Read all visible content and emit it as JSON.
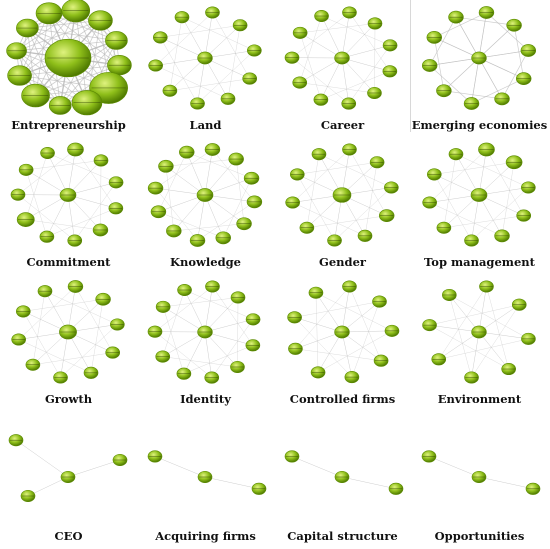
{
  "figure": {
    "node_fill": "#8fbf1a",
    "node_fill_dark": "#5b8a00",
    "node_highlight": "#d9f07a",
    "edge_color": "#b9b9b9",
    "label_color": "#444444",
    "panels": [
      {
        "title": "Entrepreneurship",
        "layout": "ring",
        "center_size": 1.0,
        "sizes": [
          0.55,
          0.45,
          0.4,
          0.45,
          0.8,
          0.6,
          0.4,
          0.55,
          0.45,
          0.35,
          0.4,
          0.5
        ],
        "node_labels": [],
        "edges": "dense"
      },
      {
        "title": "Land",
        "layout": "ring",
        "center_size": 0.22,
        "sizes": [
          0.2,
          0.2,
          0.2,
          0.2,
          0.2,
          0.2,
          0.2,
          0.2,
          0.2,
          0.2
        ],
        "node_labels": [],
        "edges": "sparse"
      },
      {
        "title": "Career",
        "layout": "ring",
        "center_size": 0.22,
        "sizes": [
          0.2,
          0.2,
          0.2,
          0.2,
          0.2,
          0.2,
          0.2,
          0.2,
          0.2,
          0.2,
          0.2
        ],
        "node_labels": [],
        "edges": "sparse"
      },
      {
        "title": "Emerging economies",
        "layout": "ring",
        "center_size": 0.22,
        "sizes": [
          0.22,
          0.22,
          0.22,
          0.22,
          0.22,
          0.22,
          0.22,
          0.22,
          0.22,
          0.22
        ],
        "node_labels": [],
        "edges": "mesh"
      },
      {
        "title": "Commitment",
        "layout": "ring",
        "center_size": 0.25,
        "sizes": [
          0.25,
          0.2,
          0.2,
          0.2,
          0.22,
          0.2,
          0.2,
          0.28,
          0.2,
          0.2,
          0.2
        ],
        "node_labels": [],
        "edges": "sparse"
      },
      {
        "title": "Knowledge",
        "layout": "ring",
        "center_size": 0.25,
        "sizes": [
          0.22,
          0.22,
          0.22,
          0.22,
          0.22,
          0.22,
          0.22,
          0.22,
          0.22,
          0.22,
          0.22,
          0.22
        ],
        "node_labels": [],
        "edges": "sparse"
      },
      {
        "title": "Gender",
        "layout": "ring",
        "center_size": 0.3,
        "sizes": [
          0.2,
          0.2,
          0.2,
          0.22,
          0.2,
          0.2,
          0.2,
          0.2,
          0.2,
          0.2
        ],
        "node_labels": [],
        "edges": "sparse"
      },
      {
        "title": "Top management",
        "layout": "ring",
        "center_size": 0.25,
        "sizes": [
          0.25,
          0.25,
          0.2,
          0.2,
          0.22,
          0.2,
          0.2,
          0.2,
          0.2,
          0.2
        ],
        "node_labels": [],
        "edges": "sparse"
      },
      {
        "title": "Growth",
        "layout": "ring",
        "center_size": 0.28,
        "sizes": [
          0.22,
          0.22,
          0.2,
          0.2,
          0.2,
          0.2,
          0.2,
          0.2,
          0.2,
          0.2
        ],
        "node_labels": [],
        "edges": "sparse"
      },
      {
        "title": "Identity",
        "layout": "ring",
        "center_size": 0.22,
        "sizes": [
          0.2,
          0.2,
          0.2,
          0.2,
          0.2,
          0.2,
          0.2,
          0.2,
          0.2,
          0.2,
          0.2
        ],
        "node_labels": [],
        "edges": "sparse"
      },
      {
        "title": "Controlled firms",
        "layout": "ring",
        "center_size": 0.22,
        "sizes": [
          0.2,
          0.2,
          0.2,
          0.2,
          0.2,
          0.2,
          0.2,
          0.2,
          0.2
        ],
        "node_labels": [],
        "edges": "sparse"
      },
      {
        "title": "Environment",
        "layout": "ring",
        "center_size": 0.22,
        "sizes": [
          0.2,
          0.2,
          0.2,
          0.2,
          0.2,
          0.2,
          0.2,
          0.2
        ],
        "node_labels": [],
        "edges": "sparse"
      },
      {
        "title": "CEO",
        "layout": "fan",
        "center_size": 0.2,
        "sizes": [
          0.2,
          0.2,
          0.2
        ],
        "node_labels": [],
        "edges": "star"
      },
      {
        "title": "Acquiring firms",
        "layout": "fan",
        "center_size": 0.2,
        "sizes": [
          0.2,
          0.2
        ],
        "node_labels": [],
        "edges": "star"
      },
      {
        "title": "Capital structure",
        "layout": "fan",
        "center_size": 0.2,
        "sizes": [
          0.2,
          0.2
        ],
        "node_labels": [],
        "edges": "star"
      },
      {
        "title": "Opportunities",
        "layout": "fan",
        "center_size": 0.2,
        "sizes": [
          0.2,
          0.2
        ],
        "node_labels": [],
        "edges": "star"
      }
    ]
  }
}
